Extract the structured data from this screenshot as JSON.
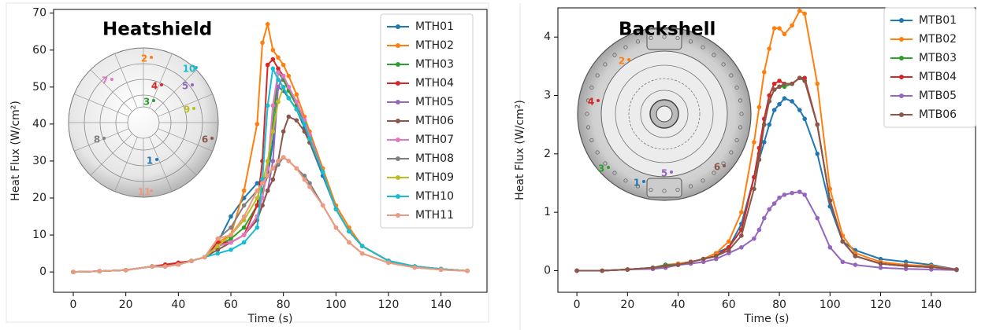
{
  "chart_data": [
    {
      "type": "line",
      "title": "Heatshield",
      "xlabel": "Time (s)",
      "ylabel": "Heat Flux (W/cm²)",
      "x": [
        0,
        10,
        20,
        30,
        35,
        40,
        45,
        50,
        55,
        60,
        65,
        70,
        72,
        74,
        76,
        78,
        80,
        82,
        85,
        88,
        90,
        95,
        100,
        105,
        110,
        120,
        130,
        140,
        150
      ],
      "xlim": [
        -7.5,
        157.5
      ],
      "xticks": [
        0,
        20,
        40,
        60,
        80,
        100,
        120,
        140
      ],
      "ylim": [
        -5.5,
        71
      ],
      "yticks": [
        0,
        10,
        20,
        30,
        40,
        50,
        60,
        70
      ],
      "legend": "upper right",
      "series": [
        {
          "name": "MTH01",
          "color": "#1f77b4",
          "values": [
            0,
            0.2,
            0.5,
            1.5,
            1.5,
            2,
            3,
            4,
            8,
            15,
            20,
            24,
            25,
            26,
            35,
            50,
            49,
            47,
            44,
            39,
            35,
            26,
            17,
            11,
            7,
            3,
            1.5,
            0.8,
            0.3
          ]
        },
        {
          "name": "MTH02",
          "color": "#ff7f0e",
          "values": [
            0,
            0.2,
            0.5,
            1.5,
            1.8,
            2,
            3,
            4,
            8,
            10,
            22,
            40,
            62,
            67,
            60,
            58,
            56,
            53,
            48,
            42,
            38,
            28,
            18,
            12,
            7,
            3,
            1.5,
            0.8,
            0.3
          ]
        },
        {
          "name": "MTH03",
          "color": "#2ca02c",
          "values": [
            0,
            0.2,
            0.5,
            1.5,
            1.5,
            2,
            3,
            4,
            7,
            9,
            12,
            18,
            22,
            26,
            40,
            54,
            52,
            49,
            45,
            40,
            36,
            27,
            17,
            11,
            7,
            3,
            1.5,
            0.8,
            0.3
          ]
        },
        {
          "name": "MTH04",
          "color": "#d62728",
          "values": [
            0,
            0.2,
            0.5,
            1.5,
            2,
            2.5,
            3,
            4,
            8,
            8,
            10,
            18,
            30,
            56,
            57.5,
            55,
            53,
            50,
            46,
            41,
            37,
            27,
            17,
            11,
            7,
            3,
            1.5,
            0.8,
            0.3
          ]
        },
        {
          "name": "MTH05",
          "color": "#9467bd",
          "values": [
            0,
            0.2,
            0.5,
            1.5,
            1.5,
            2,
            3,
            4,
            7,
            8,
            10,
            15,
            18,
            22,
            30,
            50,
            53,
            50,
            46,
            41,
            37,
            27,
            17,
            11,
            7,
            3,
            1.5,
            0.8,
            0.3
          ]
        },
        {
          "name": "MTH06",
          "color": "#8c564b",
          "values": [
            0,
            0.2,
            0.5,
            1.5,
            1.5,
            2,
            3,
            4,
            6,
            8,
            10,
            14,
            18,
            22,
            25,
            30,
            38,
            42,
            41,
            38,
            35,
            27,
            17,
            11,
            7,
            3,
            1.5,
            0.8,
            0.3
          ]
        },
        {
          "name": "MTH07",
          "color": "#e377c2",
          "values": [
            0,
            0.2,
            0.5,
            1.5,
            1.5,
            2,
            3,
            4,
            7,
            8,
            10,
            15,
            20,
            28,
            45,
            54,
            53,
            50,
            46,
            41,
            37,
            27,
            17,
            11,
            7,
            3,
            1.5,
            0.8,
            0.3
          ]
        },
        {
          "name": "MTH08",
          "color": "#7f7f7f",
          "values": [
            0,
            0.2,
            0.5,
            1.5,
            1.5,
            2,
            3,
            4,
            9,
            12,
            18,
            22,
            24,
            26,
            28,
            29,
            31,
            30,
            28,
            26,
            24,
            18,
            12,
            8,
            5,
            2.5,
            1.2,
            0.6,
            0.3
          ]
        },
        {
          "name": "MTH09",
          "color": "#bcbd22",
          "values": [
            0,
            0.2,
            0.5,
            1.5,
            1.5,
            2,
            3,
            4,
            7,
            10,
            14,
            20,
            24,
            30,
            38,
            46,
            50,
            47,
            44,
            40,
            36,
            27,
            17,
            11,
            7,
            3,
            1.5,
            0.8,
            0.3
          ]
        },
        {
          "name": "MTH10",
          "color": "#17becf",
          "values": [
            0,
            0.2,
            0.5,
            1.5,
            1.5,
            2,
            3,
            4,
            5,
            6,
            8,
            12,
            25,
            45,
            55,
            52,
            50,
            47,
            44,
            40,
            36,
            27,
            17,
            11,
            7,
            3,
            1.5,
            0.8,
            0.3
          ]
        },
        {
          "name": "MTH11",
          "color": "#ee9a80",
          "values": [
            0,
            0.2,
            0.5,
            1.5,
            1.5,
            2,
            3,
            4,
            9,
            10,
            15,
            22,
            24,
            26,
            28,
            30,
            31,
            30,
            28,
            25,
            23,
            18,
            12,
            8,
            5,
            2.5,
            1.2,
            0.6,
            0.3
          ]
        }
      ],
      "annotations": [
        "1",
        "2",
        "3",
        "4",
        "5",
        "6",
        "7",
        "8",
        "9",
        "10",
        "11"
      ]
    },
    {
      "type": "line",
      "title": "Backshell",
      "xlabel": "Time (s)",
      "ylabel": "Heat Flux (W/cm²)",
      "x": [
        0,
        10,
        20,
        30,
        35,
        40,
        45,
        50,
        55,
        60,
        65,
        70,
        72,
        74,
        76,
        78,
        80,
        82,
        85,
        88,
        90,
        95,
        100,
        105,
        110,
        120,
        130,
        140,
        150
      ],
      "xlim": [
        -7.5,
        157.5
      ],
      "xticks": [
        0,
        20,
        40,
        60,
        80,
        100,
        120,
        140
      ],
      "ylim": [
        -0.37,
        4.5
      ],
      "yticks": [
        0,
        1,
        2,
        3,
        4
      ],
      "legend": "upper right",
      "series": [
        {
          "name": "MTB01",
          "color": "#1f77b4",
          "values": [
            0,
            0,
            0.02,
            0.05,
            0.1,
            0.12,
            0.15,
            0.2,
            0.3,
            0.4,
            0.8,
            1.6,
            1.9,
            2.2,
            2.5,
            2.75,
            2.85,
            2.95,
            2.9,
            2.75,
            2.6,
            2.0,
            1.1,
            0.5,
            0.35,
            0.2,
            0.15,
            0.1,
            0.02
          ]
        },
        {
          "name": "MTB02",
          "color": "#ff7f0e",
          "values": [
            0,
            0,
            0.02,
            0.05,
            0.1,
            0.12,
            0.15,
            0.2,
            0.3,
            0.5,
            1.0,
            2.2,
            2.8,
            3.4,
            3.8,
            4.15,
            4.15,
            4.05,
            4.2,
            4.45,
            4.4,
            3.2,
            1.4,
            0.6,
            0.3,
            0.15,
            0.1,
            0.08,
            0.02
          ]
        },
        {
          "name": "MTB03",
          "color": "#2ca02c",
          "values": [
            0,
            0,
            0.02,
            0.05,
            0.1,
            0.1,
            0.15,
            0.2,
            0.25,
            0.4,
            0.7,
            1.6,
            2.0,
            2.5,
            2.9,
            3.1,
            3.15,
            3.15,
            3.2,
            3.3,
            3.25,
            2.5,
            1.2,
            0.5,
            0.25,
            0.12,
            0.08,
            0.06,
            0.02
          ]
        },
        {
          "name": "MTB04",
          "color": "#d62728",
          "values": [
            0,
            0,
            0.02,
            0.05,
            0.08,
            0.1,
            0.15,
            0.2,
            0.25,
            0.4,
            0.7,
            1.6,
            2.1,
            2.6,
            3.0,
            3.2,
            3.25,
            3.2,
            3.2,
            3.3,
            3.3,
            2.5,
            1.2,
            0.5,
            0.25,
            0.12,
            0.08,
            0.06,
            0.02
          ]
        },
        {
          "name": "MTB05",
          "color": "#9467bd",
          "values": [
            0,
            0,
            0.02,
            0.03,
            0.05,
            0.1,
            0.12,
            0.15,
            0.2,
            0.3,
            0.4,
            0.55,
            0.7,
            0.9,
            1.05,
            1.15,
            1.25,
            1.3,
            1.33,
            1.35,
            1.3,
            0.9,
            0.4,
            0.15,
            0.1,
            0.05,
            0.03,
            0.02,
            0.01
          ]
        },
        {
          "name": "MTB06",
          "color": "#8c564b",
          "values": [
            0,
            0,
            0.02,
            0.05,
            0.08,
            0.1,
            0.15,
            0.2,
            0.25,
            0.35,
            0.6,
            1.4,
            1.9,
            2.5,
            2.9,
            3.1,
            3.15,
            3.2,
            3.2,
            3.3,
            3.25,
            2.5,
            1.2,
            0.5,
            0.25,
            0.12,
            0.08,
            0.06,
            0.02
          ]
        }
      ],
      "annotations": [
        "1",
        "2",
        "3",
        "4",
        "5",
        "6"
      ]
    }
  ]
}
